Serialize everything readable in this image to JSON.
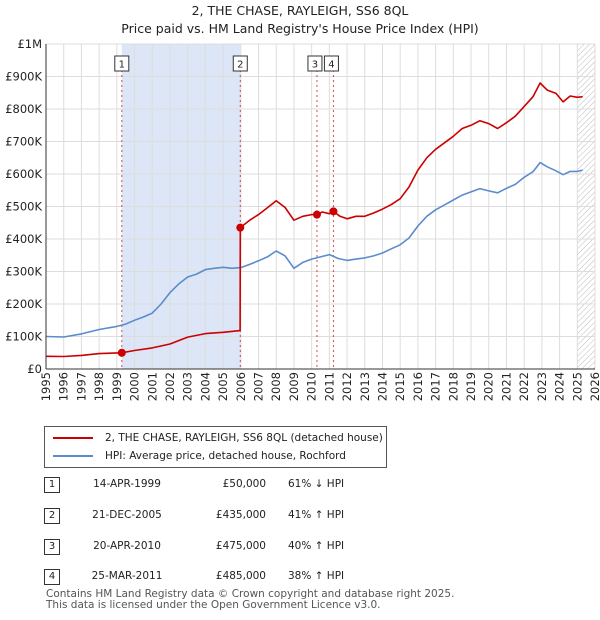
{
  "title_line1": "2, THE CHASE, RAYLEIGH, SS6 8QL",
  "title_line2": "Price paid vs. HM Land Registry's House Price Index (HPI)",
  "colors": {
    "property": "#cc0000",
    "hpi": "#5b8ccc",
    "shade": "#dde6f7",
    "grid": "#dddddd",
    "marker": "#cc0000"
  },
  "chart_data": {
    "type": "line",
    "title": "2, THE CHASE, RAYLEIGH, SS6 8QL — Price paid vs. HM Land Registry's House Price Index (HPI)",
    "xlim": [
      1995,
      2026
    ],
    "ylim": [
      0,
      1000000
    ],
    "y_ticks": [
      {
        "value": 0,
        "label": "£0"
      },
      {
        "value": 100000,
        "label": "£100K"
      },
      {
        "value": 200000,
        "label": "£200K"
      },
      {
        "value": 300000,
        "label": "£300K"
      },
      {
        "value": 400000,
        "label": "£400K"
      },
      {
        "value": 500000,
        "label": "£500K"
      },
      {
        "value": 600000,
        "label": "£600K"
      },
      {
        "value": 700000,
        "label": "£700K"
      },
      {
        "value": 800000,
        "label": "£800K"
      },
      {
        "value": 900000,
        "label": "£900K"
      },
      {
        "value": 1000000,
        "label": "£1M"
      }
    ],
    "x_ticks": [
      "1995",
      "1996",
      "1997",
      "1998",
      "1999",
      "2000",
      "2001",
      "2002",
      "2003",
      "2004",
      "2005",
      "2006",
      "2007",
      "2008",
      "2009",
      "2010",
      "2011",
      "2012",
      "2013",
      "2014",
      "2015",
      "2016",
      "2017",
      "2018",
      "2019",
      "2020",
      "2021",
      "2022",
      "2023",
      "2024",
      "2025",
      "2026"
    ],
    "shaded_period": [
      1999.28,
      2005.97
    ],
    "forecast_start": 2025.0,
    "series": [
      {
        "name": "2, THE CHASE, RAYLEIGH, SS6 8QL (detached house)",
        "points": [
          [
            1995.0,
            39000
          ],
          [
            1996.0,
            38500
          ],
          [
            1997.0,
            42000
          ],
          [
            1998.0,
            47500
          ],
          [
            1999.28,
            50000
          ],
          [
            2000.0,
            57000
          ],
          [
            2001.0,
            65000
          ],
          [
            2002.0,
            77000
          ],
          [
            2003.0,
            98000
          ],
          [
            2004.0,
            109000
          ],
          [
            2005.0,
            113000
          ],
          [
            2005.96,
            118000
          ],
          [
            2005.97,
            435000
          ],
          [
            2006.5,
            458000
          ],
          [
            2007.0,
            475000
          ],
          [
            2007.5,
            496000
          ],
          [
            2008.0,
            518000
          ],
          [
            2008.5,
            497000
          ],
          [
            2009.0,
            458000
          ],
          [
            2009.5,
            470000
          ],
          [
            2010.0,
            475000
          ],
          [
            2010.28,
            475000
          ],
          [
            2010.6,
            483000
          ],
          [
            2011.0,
            478000
          ],
          [
            2011.23,
            485000
          ],
          [
            2011.6,
            470000
          ],
          [
            2012.0,
            462000
          ],
          [
            2012.5,
            470000
          ],
          [
            2013.0,
            470000
          ],
          [
            2013.5,
            480000
          ],
          [
            2014.0,
            492000
          ],
          [
            2014.5,
            506000
          ],
          [
            2015.0,
            524000
          ],
          [
            2015.5,
            560000
          ],
          [
            2016.0,
            612000
          ],
          [
            2016.5,
            650000
          ],
          [
            2017.0,
            676000
          ],
          [
            2017.5,
            696000
          ],
          [
            2018.0,
            716000
          ],
          [
            2018.5,
            740000
          ],
          [
            2019.0,
            750000
          ],
          [
            2019.5,
            764000
          ],
          [
            2020.0,
            755000
          ],
          [
            2020.5,
            740000
          ],
          [
            2021.0,
            758000
          ],
          [
            2021.5,
            778000
          ],
          [
            2022.0,
            808000
          ],
          [
            2022.5,
            838000
          ],
          [
            2022.9,
            880000
          ],
          [
            2023.3,
            858000
          ],
          [
            2023.8,
            848000
          ],
          [
            2024.2,
            822000
          ],
          [
            2024.6,
            840000
          ],
          [
            2025.0,
            836000
          ],
          [
            2025.3,
            838000
          ]
        ]
      },
      {
        "name": "HPI: Average price, detached house, Rochford",
        "points": [
          [
            1995.0,
            100000
          ],
          [
            1996.0,
            98500
          ],
          [
            1997.0,
            108000
          ],
          [
            1998.0,
            121500
          ],
          [
            1999.0,
            131000
          ],
          [
            1999.5,
            138000
          ],
          [
            2000.0,
            150000
          ],
          [
            2000.5,
            160000
          ],
          [
            2001.0,
            172000
          ],
          [
            2001.5,
            200000
          ],
          [
            2002.0,
            235000
          ],
          [
            2002.5,
            262000
          ],
          [
            2003.0,
            283000
          ],
          [
            2003.5,
            292000
          ],
          [
            2004.0,
            306000
          ],
          [
            2004.5,
            310000
          ],
          [
            2005.0,
            313000
          ],
          [
            2005.5,
            310000
          ],
          [
            2006.0,
            312000
          ],
          [
            2006.5,
            322000
          ],
          [
            2007.0,
            333000
          ],
          [
            2007.5,
            345000
          ],
          [
            2008.0,
            363000
          ],
          [
            2008.5,
            348000
          ],
          [
            2009.0,
            310000
          ],
          [
            2009.5,
            328000
          ],
          [
            2010.0,
            338000
          ],
          [
            2010.5,
            345000
          ],
          [
            2011.0,
            352000
          ],
          [
            2011.5,
            340000
          ],
          [
            2012.0,
            334000
          ],
          [
            2012.5,
            338000
          ],
          [
            2013.0,
            342000
          ],
          [
            2013.5,
            348000
          ],
          [
            2014.0,
            357000
          ],
          [
            2014.5,
            370000
          ],
          [
            2015.0,
            382000
          ],
          [
            2015.5,
            403000
          ],
          [
            2016.0,
            440000
          ],
          [
            2016.5,
            470000
          ],
          [
            2017.0,
            490000
          ],
          [
            2017.5,
            505000
          ],
          [
            2018.0,
            520000
          ],
          [
            2018.5,
            535000
          ],
          [
            2019.0,
            545000
          ],
          [
            2019.5,
            555000
          ],
          [
            2020.0,
            548000
          ],
          [
            2020.5,
            542000
          ],
          [
            2021.0,
            556000
          ],
          [
            2021.5,
            568000
          ],
          [
            2022.0,
            590000
          ],
          [
            2022.5,
            607000
          ],
          [
            2022.9,
            635000
          ],
          [
            2023.3,
            622000
          ],
          [
            2023.8,
            610000
          ],
          [
            2024.2,
            598000
          ],
          [
            2024.6,
            608000
          ],
          [
            2025.0,
            608000
          ],
          [
            2025.3,
            612000
          ]
        ]
      }
    ],
    "sales": [
      {
        "num": "1",
        "x": 1999.28,
        "value": 50000
      },
      {
        "num": "2",
        "x": 2005.97,
        "value": 435000
      },
      {
        "num": "3",
        "x": 2010.3,
        "value": 475000
      },
      {
        "num": "4",
        "x": 2011.23,
        "value": 485000
      }
    ]
  },
  "legend": {
    "property_label": "2, THE CHASE, RAYLEIGH, SS6 8QL (detached house)",
    "hpi_label": "HPI: Average price, detached house, Rochford"
  },
  "transactions": [
    {
      "num": "1",
      "date": "14-APR-1999",
      "price": "£50,000",
      "hpi": "61% ↓ HPI"
    },
    {
      "num": "2",
      "date": "21-DEC-2005",
      "price": "£435,000",
      "hpi": "41% ↑ HPI"
    },
    {
      "num": "3",
      "date": "20-APR-2010",
      "price": "£475,000",
      "hpi": "40% ↑ HPI"
    },
    {
      "num": "4",
      "date": "25-MAR-2011",
      "price": "£485,000",
      "hpi": "38% ↑ HPI"
    }
  ],
  "footer": {
    "line1": "Contains HM Land Registry data © Crown copyright and database right 2025.",
    "line2": "This data is licensed under the Open Government Licence v3.0."
  }
}
